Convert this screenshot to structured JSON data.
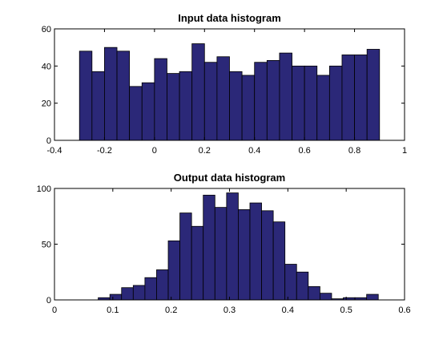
{
  "chart_data": [
    {
      "type": "bar",
      "title": "Input data histogram",
      "xlabel": "",
      "ylabel": "",
      "xlim": [
        -0.4,
        1
      ],
      "ylim": [
        0,
        60
      ],
      "xticks": [
        -0.4,
        -0.2,
        0,
        0.2,
        0.4,
        0.6,
        0.8,
        1
      ],
      "xtick_labels": [
        "-0.4",
        "-0.2",
        "0",
        "0.2",
        "0.4",
        "0.6",
        "0.8",
        "1"
      ],
      "yticks": [
        0,
        20,
        40,
        60
      ],
      "ytick_labels": [
        "0",
        "20",
        "40",
        "60"
      ],
      "bin_edges": [
        -0.3,
        -0.25,
        -0.2,
        -0.15,
        -0.1,
        -0.05,
        0,
        0.05,
        0.1,
        0.15,
        0.2,
        0.25,
        0.3,
        0.35,
        0.4,
        0.45,
        0.5,
        0.55,
        0.6,
        0.65,
        0.7,
        0.75,
        0.8,
        0.85,
        0.9
      ],
      "values": [
        48,
        37,
        50,
        48,
        29,
        31,
        44,
        36,
        37,
        52,
        42,
        45,
        37,
        35,
        42,
        43,
        47,
        40,
        40,
        35,
        40,
        46,
        46,
        49
      ],
      "grid": false,
      "bar_color": "#2b2878",
      "edge_color": "#000000"
    },
    {
      "type": "bar",
      "title": "Output data histogram",
      "xlabel": "",
      "ylabel": "",
      "xlim": [
        0,
        0.6
      ],
      "ylim": [
        0,
        100
      ],
      "xticks": [
        0,
        0.1,
        0.2,
        0.3,
        0.4,
        0.5,
        0.6
      ],
      "xtick_labels": [
        "0",
        "0.1",
        "0.2",
        "0.3",
        "0.4",
        "0.5",
        "0.6"
      ],
      "yticks": [
        0,
        50,
        100
      ],
      "ytick_labels": [
        "0",
        "50",
        "100"
      ],
      "bin_edges": [
        0.075,
        0.095,
        0.115,
        0.135,
        0.155,
        0.175,
        0.195,
        0.215,
        0.235,
        0.255,
        0.275,
        0.295,
        0.315,
        0.335,
        0.355,
        0.375,
        0.395,
        0.415,
        0.435,
        0.455,
        0.475,
        0.495,
        0.515,
        0.535,
        0.555
      ],
      "values": [
        2,
        5,
        11,
        13,
        20,
        27,
        53,
        78,
        66,
        94,
        83,
        96,
        81,
        87,
        80,
        70,
        32,
        25,
        12,
        6,
        1,
        2,
        2,
        5
      ],
      "grid": false,
      "bar_color": "#2b2878",
      "edge_color": "#000000"
    }
  ]
}
